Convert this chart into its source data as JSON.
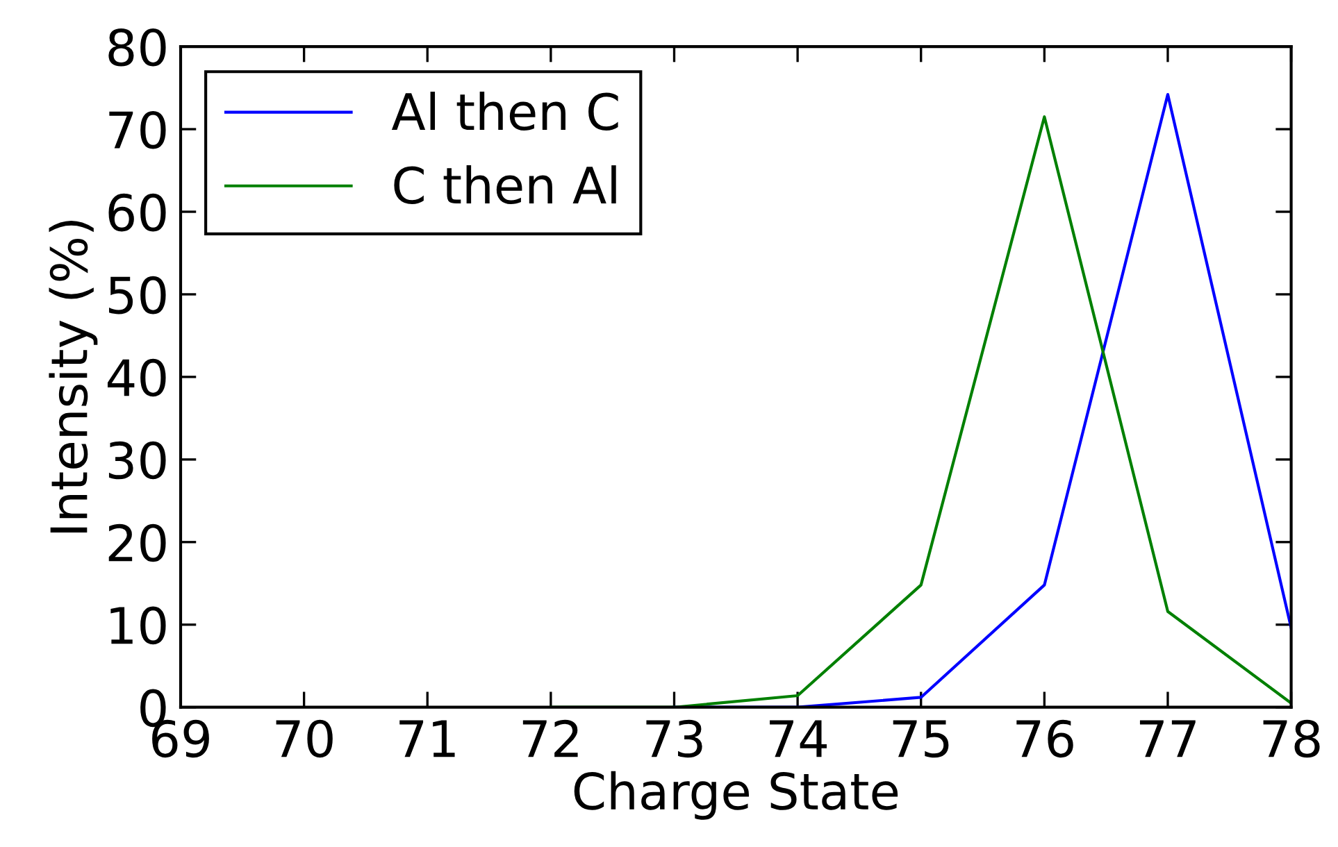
{
  "chart_data": {
    "type": "line",
    "xlabel": "Charge State",
    "ylabel": "Intensity (%)",
    "series": [
      {
        "name": "Al then C",
        "color": "#0000ff",
        "x": [
          73,
          74,
          75,
          76,
          77,
          78
        ],
        "values": [
          0,
          0,
          1.2,
          14.8,
          74.2,
          9.6
        ]
      },
      {
        "name": "C then Al",
        "color": "#008000",
        "x": [
          72,
          73,
          74,
          75,
          76,
          77,
          78
        ],
        "values": [
          0,
          0,
          1.4,
          14.8,
          71.5,
          11.6,
          0.5
        ]
      }
    ],
    "xlim": [
      69,
      78
    ],
    "xticks": [
      69,
      70,
      71,
      72,
      73,
      74,
      75,
      76,
      77,
      78
    ],
    "ylim": [
      0,
      80
    ],
    "yticks": [
      0,
      10,
      20,
      30,
      40,
      50,
      60,
      70,
      80
    ],
    "grid": false,
    "legend": "top left",
    "marker": "none",
    "line_style": "solid"
  }
}
